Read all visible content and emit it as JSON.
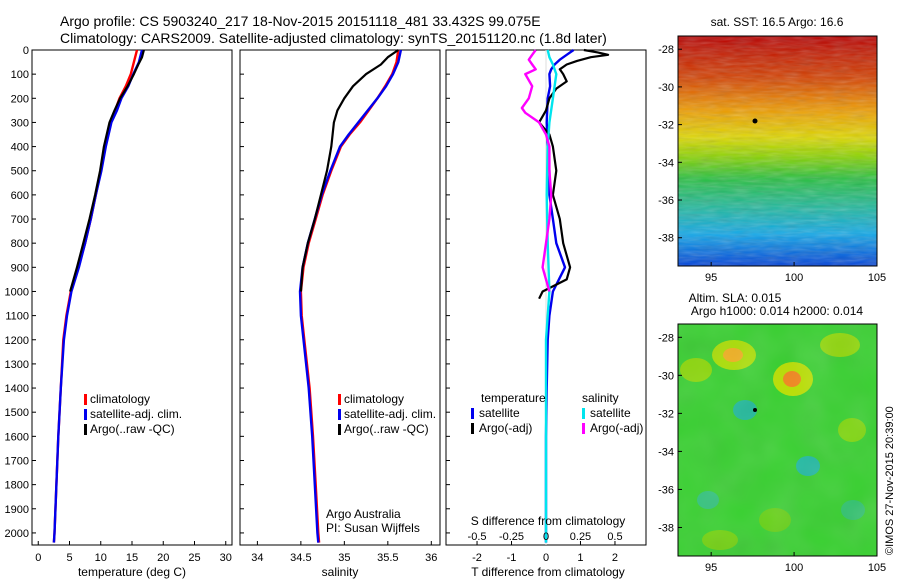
{
  "header": {
    "line1": "Argo profile: CS 5903240_217 18-Nov-2015 20151118_481 33.432S 99.075E",
    "line2": "Climatology: CARS2009. Satellite-adjusted climatology: synTS_20151120.nc (1.8d later)"
  },
  "credit": "©IMOS 27-Nov-2015 20:39:00",
  "colors": {
    "climatology": "#ff0000",
    "satellite": "#0000ee",
    "argo": "#000000",
    "salinity_satellite": "#00e5ee",
    "salinity_argo": "#ff00ff"
  },
  "chart_data": [
    {
      "id": "temperature",
      "type": "line",
      "xlabel": "temperature (deg C)",
      "ylabel": "",
      "xlim": [
        -1,
        31
      ],
      "ylim": [
        2050,
        0
      ],
      "xticks": [
        0,
        5,
        10,
        15,
        20,
        25,
        30
      ],
      "yticks": [
        0,
        100,
        200,
        300,
        400,
        500,
        600,
        700,
        800,
        900,
        1000,
        1100,
        1200,
        1300,
        1400,
        1500,
        1600,
        1700,
        1800,
        1900,
        2000
      ],
      "legend": [
        "climatology",
        "satellite-adj. clim.",
        "Argo(..raw -QC)"
      ],
      "legend_position": "lower-right",
      "series": [
        {
          "name": "climatology",
          "color": "#ff0000",
          "depth": [
            0,
            50,
            100,
            150,
            200,
            250,
            300,
            400,
            500,
            600,
            700,
            800,
            900,
            1000,
            1100,
            1200,
            1400,
            1600,
            1800,
            2000,
            2040
          ],
          "values": [
            15.8,
            15.3,
            14.8,
            14.0,
            13.0,
            12.3,
            11.5,
            10.7,
            10.0,
            9.2,
            8.4,
            7.5,
            6.4,
            5.2,
            4.5,
            4.0,
            3.6,
            3.2,
            2.9,
            2.6,
            2.5
          ]
        },
        {
          "name": "satellite-adj. clim.",
          "color": "#0000ee",
          "depth": [
            0,
            50,
            100,
            150,
            200,
            250,
            300,
            400,
            500,
            600,
            700,
            800,
            900,
            1000,
            1100,
            1200,
            1400,
            1600,
            1800,
            2000,
            2040
          ],
          "values": [
            16.6,
            16.1,
            15.2,
            14.4,
            13.3,
            12.6,
            11.7,
            10.8,
            10.1,
            9.2,
            8.4,
            7.5,
            6.5,
            5.3,
            4.6,
            4.1,
            3.6,
            3.2,
            2.9,
            2.6,
            2.5
          ]
        },
        {
          "name": "Argo(..raw -QC)",
          "color": "#000000",
          "depth": [
            0,
            30,
            60,
            100,
            150,
            200,
            250,
            300,
            400,
            500,
            600,
            700,
            800,
            900,
            1000
          ],
          "values": [
            16.9,
            16.6,
            16.0,
            15.3,
            14.3,
            13.1,
            12.2,
            11.4,
            10.5,
            9.9,
            9.1,
            8.2,
            7.2,
            6.2,
            5.1
          ]
        }
      ]
    },
    {
      "id": "salinity",
      "type": "line",
      "xlabel": "salinity",
      "ylabel": "",
      "xlim": [
        33.8,
        36.1
      ],
      "ylim": [
        2050,
        0
      ],
      "xticks": [
        34,
        34.5,
        35,
        35.5,
        36
      ],
      "legend": [
        "climatology",
        "satellite-adj. clim.",
        "Argo(..raw -QC)"
      ],
      "legend_position": "lower-right",
      "annotation": [
        "Argo Australia",
        "PI: Susan Wijffels"
      ],
      "series": [
        {
          "name": "climatology",
          "color": "#ff0000",
          "depth": [
            0,
            50,
            100,
            150,
            200,
            250,
            300,
            350,
            400,
            500,
            600,
            700,
            800,
            900,
            1000,
            1100,
            1200,
            1400,
            1600,
            1800,
            2000,
            2040
          ],
          "values": [
            35.62,
            35.6,
            35.55,
            35.47,
            35.38,
            35.28,
            35.18,
            35.06,
            34.96,
            34.85,
            34.75,
            34.67,
            34.59,
            34.53,
            34.5,
            34.51,
            34.54,
            34.6,
            34.64,
            34.67,
            34.7,
            34.71
          ]
        },
        {
          "name": "satellite-adj. clim.",
          "color": "#0000ee",
          "depth": [
            0,
            50,
            100,
            150,
            200,
            250,
            300,
            350,
            400,
            500,
            600,
            700,
            800,
            900,
            1000,
            1100,
            1200,
            1400,
            1600,
            1800,
            2000,
            2040
          ],
          "values": [
            35.65,
            35.62,
            35.56,
            35.48,
            35.38,
            35.27,
            35.16,
            35.05,
            34.95,
            34.84,
            34.74,
            34.66,
            34.58,
            34.52,
            34.49,
            34.5,
            34.53,
            34.59,
            34.63,
            34.66,
            34.69,
            34.7
          ]
        },
        {
          "name": "Argo(..raw -QC)",
          "color": "#000000",
          "depth": [
            0,
            30,
            60,
            100,
            150,
            200,
            250,
            300,
            400,
            500,
            600,
            700,
            800,
            900,
            1000
          ],
          "values": [
            35.62,
            35.5,
            35.42,
            35.25,
            35.1,
            35.0,
            34.92,
            34.88,
            34.85,
            34.8,
            34.73,
            34.66,
            34.58,
            34.52,
            34.5
          ]
        }
      ]
    },
    {
      "id": "difference",
      "type": "line",
      "xlabel": "T difference from climatology",
      "top_xlabel": "S difference from climatology",
      "xlim": [
        -2.9,
        2.9
      ],
      "ylim": [
        2050,
        0
      ],
      "xticks": [
        -2,
        -1,
        0,
        1,
        2
      ],
      "top_xticks": [
        {
          "label": "-0.5",
          "t": -2
        },
        {
          "label": "-0.25",
          "t": -1
        },
        {
          "label": "0",
          "t": 0
        },
        {
          "label": "0.25",
          "t": 1
        },
        {
          "label": "0.5",
          "t": 2
        }
      ],
      "legend_groups": [
        {
          "title": "temperature",
          "items": [
            "satellite",
            "Argo(-adj)"
          ]
        },
        {
          "title": "salinity",
          "items": [
            "satellite",
            "Argo(-adj)"
          ]
        }
      ],
      "legend_position": "lower-center",
      "series": [
        {
          "name": "temperature satellite",
          "color": "#0000ee",
          "depth": [
            0,
            20,
            40,
            60,
            80,
            100,
            150,
            200,
            300,
            400,
            500,
            600,
            700,
            800,
            900,
            1000,
            1100,
            1200,
            1400,
            1600,
            1800,
            2000,
            2040
          ],
          "values": [
            0.8,
            0.6,
            0.4,
            0.25,
            0.15,
            0.1,
            0.12,
            0.05,
            0.02,
            0.05,
            0.1,
            0.1,
            0.2,
            0.3,
            0.55,
            0.2,
            0.1,
            0.05,
            0.02,
            0.0,
            0.0,
            0.0,
            0.0
          ]
        },
        {
          "name": "temperature Argo(-adj)",
          "color": "#000000",
          "depth": [
            0,
            10,
            20,
            30,
            45,
            60,
            80,
            100,
            130,
            160,
            200,
            250,
            300,
            350,
            400,
            500,
            600,
            700,
            800,
            900,
            950,
            1000,
            1030
          ],
          "values": [
            1.1,
            1.5,
            1.8,
            1.3,
            0.9,
            0.6,
            0.4,
            0.5,
            0.6,
            0.3,
            0.1,
            0.0,
            -0.2,
            0.1,
            0.2,
            0.3,
            0.2,
            0.4,
            0.5,
            0.7,
            0.6,
            -0.1,
            -0.2
          ]
        },
        {
          "name": "salinity satellite",
          "color": "#00e5ee",
          "depth": [
            0,
            30,
            60,
            100,
            150,
            200,
            300,
            400,
            600,
            800,
            1000,
            1200,
            1400,
            1600,
            1800,
            2000,
            2040
          ],
          "values": [
            0.05,
            0.1,
            0.2,
            0.3,
            0.25,
            0.2,
            0.1,
            0.05,
            0.02,
            0.05,
            0.1,
            0.0,
            0.0,
            0.0,
            0.0,
            0.0,
            0.0
          ]
        },
        {
          "name": "salinity Argo(-adj)",
          "color": "#ff00ff",
          "depth": [
            0,
            20,
            40,
            60,
            80,
            100,
            150,
            200,
            240,
            260,
            300,
            350,
            400,
            500,
            600,
            700,
            800,
            900,
            1000
          ],
          "values": [
            -0.3,
            -0.4,
            -0.5,
            -0.4,
            -0.3,
            -0.6,
            -0.4,
            -0.5,
            -0.7,
            -0.6,
            -0.2,
            0.0,
            0.1,
            0.1,
            0.15,
            0.1,
            0.0,
            -0.1,
            0.1
          ]
        }
      ]
    },
    {
      "id": "sst-map",
      "type": "heatmap",
      "title": "sat. SST: 16.5 Argo: 16.6",
      "xlim": [
        93,
        105
      ],
      "ylim": [
        -39.5,
        -27.3
      ],
      "xticks": [
        95,
        100,
        105
      ],
      "yticks": [
        -28,
        -30,
        -32,
        -34,
        -36,
        -38
      ]
    },
    {
      "id": "sla-map",
      "type": "heatmap",
      "title_lines": [
        "Altim. SLA: 0.015",
        "Argo h1000: 0.014 h2000: 0.014"
      ],
      "xlim": [
        93,
        105
      ],
      "ylim": [
        -39.5,
        -27.3
      ],
      "xticks": [
        95,
        100,
        105
      ],
      "yticks": [
        -28,
        -30,
        -32,
        -34,
        -36,
        -38
      ]
    }
  ]
}
